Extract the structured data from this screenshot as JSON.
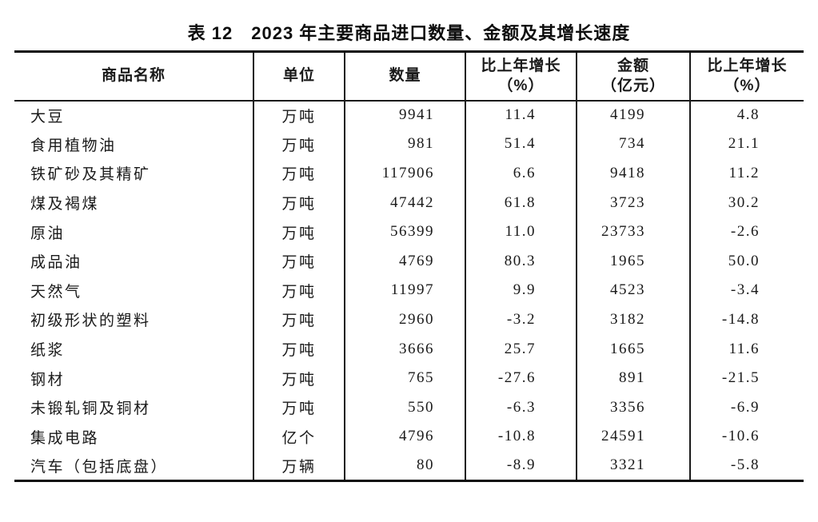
{
  "page": {
    "title": "表 12　2023 年主要商品进口数量、金额及其增长速度"
  },
  "table": {
    "headers": {
      "name": "商品名称",
      "unit": "单位",
      "quantity": "数量",
      "quantity_growth_line1": "比上年增长",
      "quantity_growth_line2": "（%）",
      "amount_line1": "金额",
      "amount_line2": "（亿元）",
      "amount_growth_line1": "比上年增长",
      "amount_growth_line2": "（%）"
    },
    "rows": [
      {
        "name": "大豆",
        "unit": "万吨",
        "quantity": "9941",
        "quantity_growth": "11.4",
        "amount": "4199",
        "amount_growth": "4.8"
      },
      {
        "name": "食用植物油",
        "unit": "万吨",
        "quantity": "981",
        "quantity_growth": "51.4",
        "amount": "734",
        "amount_growth": "21.1"
      },
      {
        "name": "铁矿砂及其精矿",
        "unit": "万吨",
        "quantity": "117906",
        "quantity_growth": "6.6",
        "amount": "9418",
        "amount_growth": "11.2"
      },
      {
        "name": "煤及褐煤",
        "unit": "万吨",
        "quantity": "47442",
        "quantity_growth": "61.8",
        "amount": "3723",
        "amount_growth": "30.2"
      },
      {
        "name": "原油",
        "unit": "万吨",
        "quantity": "56399",
        "quantity_growth": "11.0",
        "amount": "23733",
        "amount_growth": "-2.6"
      },
      {
        "name": "成品油",
        "unit": "万吨",
        "quantity": "4769",
        "quantity_growth": "80.3",
        "amount": "1965",
        "amount_growth": "50.0"
      },
      {
        "name": "天然气",
        "unit": "万吨",
        "quantity": "11997",
        "quantity_growth": "9.9",
        "amount": "4523",
        "amount_growth": "-3.4"
      },
      {
        "name": "初级形状的塑料",
        "unit": "万吨",
        "quantity": "2960",
        "quantity_growth": "-3.2",
        "amount": "3182",
        "amount_growth": "-14.8"
      },
      {
        "name": "纸浆",
        "unit": "万吨",
        "quantity": "3666",
        "quantity_growth": "25.7",
        "amount": "1665",
        "amount_growth": "11.6"
      },
      {
        "name": "钢材",
        "unit": "万吨",
        "quantity": "765",
        "quantity_growth": "-27.6",
        "amount": "891",
        "amount_growth": "-21.5"
      },
      {
        "name": "未锻轧铜及铜材",
        "unit": "万吨",
        "quantity": "550",
        "quantity_growth": "-6.3",
        "amount": "3356",
        "amount_growth": "-6.9"
      },
      {
        "name": "集成电路",
        "unit": "亿个",
        "quantity": "4796",
        "quantity_growth": "-10.8",
        "amount": "24591",
        "amount_growth": "-10.6"
      },
      {
        "name": "汽车（包括底盘）",
        "unit": "万辆",
        "quantity": "80",
        "quantity_growth": "-8.9",
        "amount": "3321",
        "amount_growth": "-5.8"
      }
    ]
  }
}
